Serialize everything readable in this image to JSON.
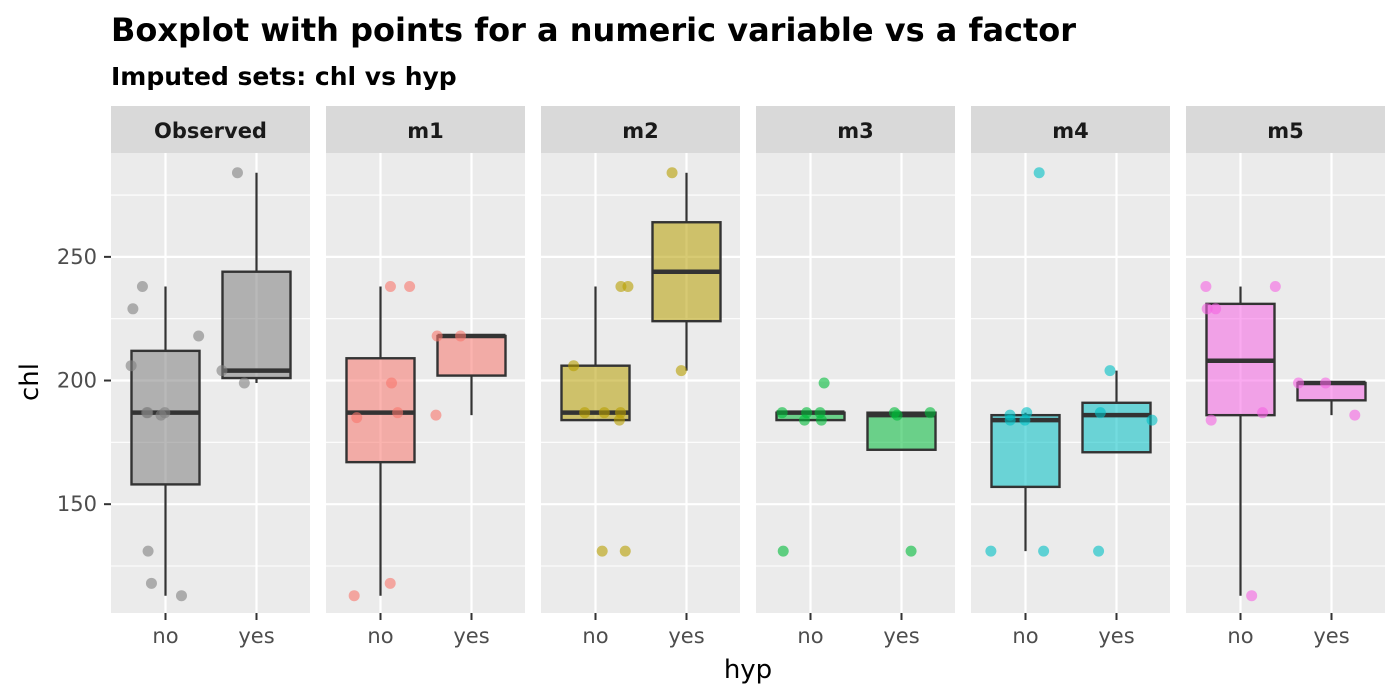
{
  "chart_data": {
    "type": "boxplot",
    "title": "Boxplot with points for a numeric variable vs a factor",
    "subtitle": "Imputed sets:  chl vs hyp",
    "xlabel": "hyp",
    "ylabel": "chl",
    "categories": [
      "no",
      "yes"
    ],
    "y_ticks": [
      150,
      200,
      250
    ],
    "ylim": [
      106,
      292
    ],
    "grid": true,
    "legend": "none",
    "panels": [
      {
        "label": "Observed",
        "color": "#808080",
        "boxes": {
          "no": {
            "lower": 113,
            "q1": 158,
            "median": 187,
            "q3": 212,
            "upper": 238
          },
          "yes": {
            "lower": 199,
            "q1": 201,
            "median": 204,
            "q3": 244,
            "upper": 284
          }
        },
        "points": {
          "no": [
            186,
            187,
            187,
            206,
            238,
            229,
            218,
            187,
            131,
            118,
            113
          ],
          "yes": [
            284,
            199,
            204
          ]
        }
      },
      {
        "label": "m1",
        "color": "#F8766D",
        "boxes": {
          "no": {
            "lower": 113,
            "q1": 167,
            "median": 187,
            "q3": 209,
            "upper": 238
          },
          "yes": {
            "lower": 186,
            "q1": 202,
            "median": 218,
            "q3": 218,
            "upper": 218
          }
        },
        "points": {
          "no": [
            238,
            238,
            199,
            185,
            187,
            118,
            113
          ],
          "yes": [
            218,
            218,
            186
          ]
        }
      },
      {
        "label": "m2",
        "color": "#B79F00",
        "boxes": {
          "no": {
            "lower": 184,
            "q1": 184,
            "median": 187,
            "q3": 206,
            "upper": 238
          },
          "yes": {
            "lower": 204,
            "q1": 224,
            "median": 244,
            "q3": 264,
            "upper": 284
          }
        },
        "points": {
          "no": [
            238,
            238,
            187,
            187,
            187,
            206,
            184,
            131,
            131
          ],
          "yes": [
            284,
            204
          ]
        }
      },
      {
        "label": "m3",
        "color": "#00BA38",
        "boxes": {
          "no": {
            "lower": 184,
            "q1": 184,
            "median": 187,
            "q3": 187,
            "upper": 187
          },
          "yes": {
            "lower": 172,
            "q1": 172,
            "median": 186,
            "q3": 187,
            "upper": 187
          }
        },
        "points": {
          "no": [
            184,
            187,
            199,
            187,
            184,
            187,
            131
          ],
          "yes": [
            187,
            186,
            187,
            131
          ]
        }
      },
      {
        "label": "m4",
        "color": "#00BFC4",
        "boxes": {
          "no": {
            "lower": 131,
            "q1": 157,
            "median": 184,
            "q3": 186,
            "upper": 187
          },
          "yes": {
            "lower": 171,
            "q1": 171,
            "median": 186,
            "q3": 191,
            "upper": 204
          }
        },
        "points": {
          "no": [
            284,
            186,
            187,
            184,
            184,
            131,
            131
          ],
          "yes": [
            204,
            184,
            187,
            131
          ]
        }
      },
      {
        "label": "m5",
        "color": "#F564E3",
        "boxes": {
          "no": {
            "lower": 113,
            "q1": 186,
            "median": 208,
            "q3": 231,
            "upper": 238
          },
          "yes": {
            "lower": 186,
            "q1": 192,
            "median": 199,
            "q3": 199,
            "upper": 199
          }
        },
        "points": {
          "no": [
            229,
            238,
            238,
            229,
            187,
            184,
            113
          ],
          "yes": [
            199,
            199,
            186
          ]
        }
      }
    ]
  }
}
